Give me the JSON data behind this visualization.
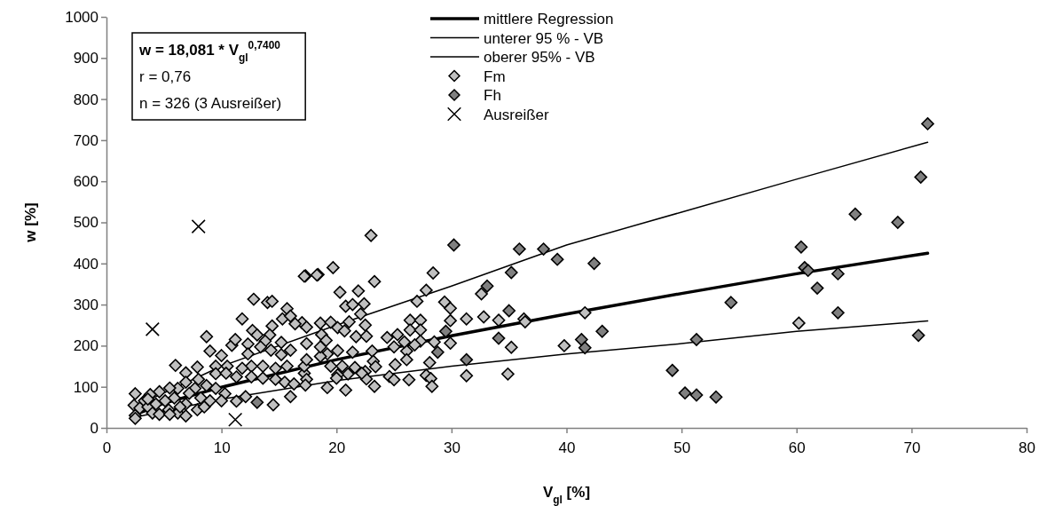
{
  "chart_data": {
    "type": "scatter",
    "xlabel": "V$_{gl}$ [%]",
    "ylabel": "w [%]",
    "xlim": [
      0,
      80
    ],
    "xticks": [
      0,
      10,
      20,
      30,
      40,
      50,
      60,
      70,
      80
    ],
    "ylim": [
      0,
      1000
    ],
    "yticks": [
      0,
      100,
      200,
      300,
      400,
      500,
      600,
      700,
      800,
      900,
      1000
    ],
    "grid": false,
    "legend": "top",
    "annotations": [
      "w = 18,081 * V$_{gl}$$^{0,7400}$",
      "r = 0,76",
      "n = 326 (3 Ausreißer)"
    ],
    "series": [
      {
        "name": "mittlere Regression",
        "type": "line",
        "color": "#000000",
        "marker": "none",
        "line_style": "solid",
        "x": [
          2.3,
          5,
          10,
          20,
          30,
          40,
          50,
          60,
          71.4
        ],
        "values": [
          30,
          60,
          99,
          166,
          224,
          277,
          327,
          375,
          425
        ]
      },
      {
        "name": "unterer 95 % - VB",
        "type": "line",
        "color": "#000000",
        "marker": "none",
        "line_style": "solid",
        "x": [
          2.3,
          10,
          20,
          30,
          40,
          50,
          60,
          71.4
        ],
        "values": [
          25,
          70,
          115,
          150,
          180,
          205,
          235,
          260
        ]
      },
      {
        "name": "oberer 95% - VB",
        "type": "line",
        "color": "#000000",
        "marker": "none",
        "line_style": "solid",
        "x": [
          2.3,
          10,
          20,
          30,
          40,
          50,
          60,
          71.4
        ],
        "values": [
          50,
          150,
          250,
          345,
          445,
          525,
          605,
          695
        ]
      },
      {
        "name": "Fm",
        "color": "#c0c0c0",
        "marker": "diamond",
        "x": [
          23,
          19.7,
          17.3,
          18.4,
          28.4,
          23.3,
          20.3,
          21.9,
          27.8,
          27,
          32.6,
          29.4,
          29.9,
          20.8,
          21.4,
          22.4,
          22.1,
          22.5,
          26.4,
          27.3,
          26.4,
          27.3,
          29.9,
          31.3,
          32.8,
          34.1,
          36.3,
          35.2,
          31.3,
          34.9,
          29.9,
          28.5,
          27.3,
          26.8,
          26.1,
          25.9,
          25.3,
          24.4,
          25,
          23.1,
          21.4,
          20.1,
          19.2,
          18.6,
          18.6,
          19.5,
          20.1,
          20.7,
          21.7,
          22.6,
          21.1,
          18.7,
          19.1,
          19.5,
          20.5,
          21.6,
          22.5,
          23.2,
          23.4,
          25.1,
          26.1,
          28.1,
          27.8,
          28.2,
          24.6,
          25,
          22.6,
          22.2,
          21,
          20.1,
          20,
          19.2,
          20.8,
          23.3,
          26.3,
          28.3,
          17.2,
          17.4,
          17.2,
          17,
          18.6,
          17.2,
          18.3,
          12.8,
          14,
          14.4,
          11.8,
          15.7,
          15.3,
          16,
          16.4,
          14.4,
          12.7,
          13.1,
          8.7,
          10.9,
          11.2,
          9,
          10,
          6,
          7.9,
          6.9,
          14.2,
          13.8,
          15.2,
          16,
          17.4,
          17.4,
          17.4,
          12.3,
          12.3,
          13.4,
          14.3,
          15.2,
          15.7,
          14.7,
          13.6,
          12.6,
          11.8,
          10.5,
          9.5,
          9.5,
          10.4,
          11.3,
          12.6,
          13.6,
          14.7,
          15.5,
          16.3,
          17.3,
          16,
          14.5,
          12.1,
          11.3,
          10.3,
          9.5,
          8.7,
          8,
          7.7,
          6.9,
          6.2,
          5.5,
          4.6,
          3.8,
          3.3,
          2.5,
          2.4,
          2.5,
          2.5,
          2.9,
          3.6,
          4,
          4.6,
          5.4,
          6.2,
          6.9,
          6.9,
          7.9,
          8.5,
          8.2,
          9,
          10,
          4.3,
          5.1,
          5.9,
          6.4,
          7.2,
          3.6,
          5.5,
          60.2,
          39.8,
          41.6,
          36.4
        ],
        "values": [
          468,
          390,
          370,
          373,
          377,
          356,
          330,
          333,
          335,
          308,
          326,
          306,
          291,
          296,
          300,
          302,
          277,
          250,
          262,
          262,
          238,
          238,
          261,
          265,
          270,
          262,
          265,
          196,
          127,
          131,
          206,
          209,
          211,
          202,
          187,
          209,
          227,
          220,
          197,
          187,
          184,
          188,
          180,
          174,
          255,
          257,
          244,
          236,
          222,
          223,
          258,
          227,
          213,
          150,
          150,
          147,
          137,
          162,
          149,
          154,
          166,
          159,
          128,
          120,
          125,
          117,
          119,
          133,
          131,
          129,
          121,
          98,
          92,
          101,
          117,
          101,
          133,
          118,
          150,
          256,
          197,
          369,
          372,
          313,
          305,
          308,
          265,
          290,
          265,
          272,
          253,
          248,
          237,
          226,
          222,
          201,
          215,
          187,
          176,
          152,
          148,
          134,
          226,
          211,
          208,
          189,
          245,
          205,
          166,
          204,
          180,
          197,
          189,
          178,
          150,
          145,
          150,
          150,
          145,
          150,
          150,
          132,
          133,
          124,
          124,
          121,
          118,
          111,
          107,
          104,
          76,
          56,
          76,
          65,
          83,
          96,
          103,
          118,
          96,
          111,
          96,
          97,
          88,
          81,
          66,
          83,
          55,
          30,
          23,
          48,
          51,
          36,
          33,
          44,
          36,
          29,
          58,
          44,
          51,
          73,
          66,
          66,
          58,
          66,
          73,
          51,
          84,
          70,
          33,
          255,
          200,
          280,
          258
        ]
      },
      {
        "name": "Fh",
        "color": "#808080",
        "marker": "diamond",
        "x": [
          71.4,
          70.8,
          65.1,
          68.8,
          60.4,
          60.7,
          61,
          63.6,
          61.8,
          63.6,
          70.6,
          54.3,
          51.3,
          49.2,
          50.3,
          51.3,
          53,
          38,
          39.2,
          42.4,
          41.3,
          41.6,
          43.1,
          30.2,
          35.9,
          35.2,
          33.1,
          35,
          29.5,
          28.8,
          31.3,
          34.1,
          13.1
        ],
        "values": [
          740,
          610,
          520,
          500,
          440,
          390,
          383,
          375,
          340,
          280,
          225,
          305,
          215,
          140,
          85,
          80,
          75,
          435,
          410,
          400,
          215,
          195,
          235,
          445,
          435,
          378,
          345,
          285,
          235,
          184,
          166,
          218,
          62
        ]
      },
      {
        "name": "Ausreißer",
        "color": "#000000",
        "marker": "cross",
        "x": [
          8,
          4,
          11.2
        ],
        "values": [
          490,
          240,
          20
        ]
      }
    ]
  }
}
